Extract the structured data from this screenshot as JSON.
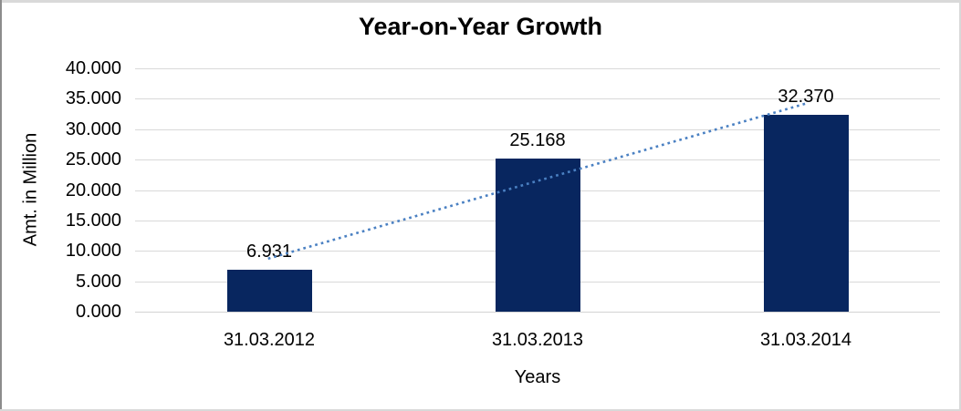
{
  "chart_data": {
    "type": "bar",
    "title": "Year-on-Year Growth",
    "xlabel": "Years",
    "ylabel": "Amt. in Million",
    "categories": [
      "31.03.2012",
      "31.03.2013",
      "31.03.2014"
    ],
    "values": [
      6.931,
      25.168,
      32.37
    ],
    "data_labels": [
      "6.931",
      "25.168",
      "32.370"
    ],
    "ylim": [
      0,
      40
    ],
    "ytick_step": 5,
    "ytick_labels": [
      "0.000",
      "5.000",
      "10.000",
      "15.000",
      "20.000",
      "25.000",
      "30.000",
      "35.000",
      "40.000"
    ],
    "grid": "horizontal-only",
    "legend": "none",
    "bar_color": "#08265f",
    "gridline_color": "#d9d9d9",
    "trendline": {
      "type": "linear",
      "style": "dotted",
      "color": "#4a80c2"
    }
  }
}
